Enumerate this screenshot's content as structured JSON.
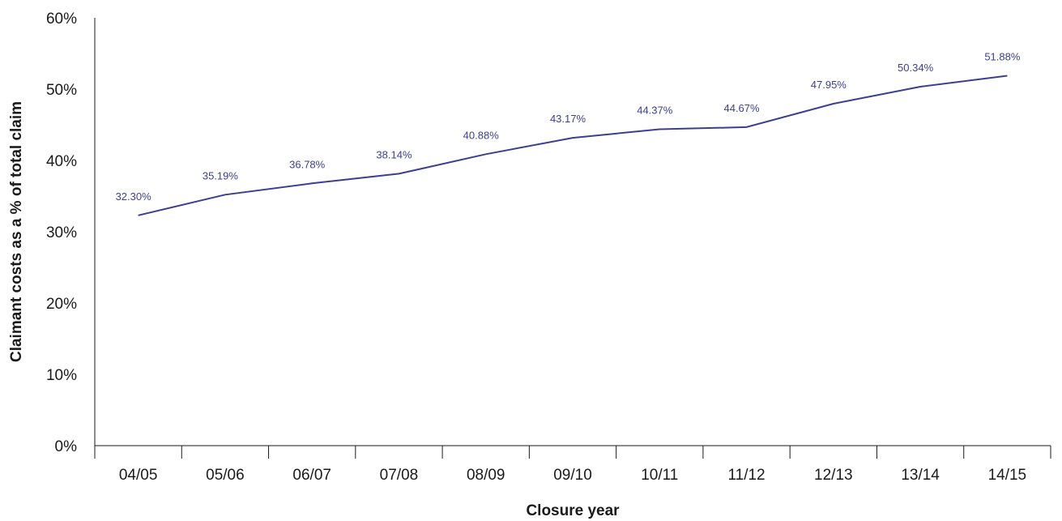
{
  "chart_data": {
    "type": "line",
    "title": "",
    "xlabel": "Closure year",
    "ylabel": "Claimant costs as a % of total claim",
    "categories": [
      "04/05",
      "05/06",
      "06/07",
      "07/08",
      "08/09",
      "09/10",
      "10/11",
      "11/12",
      "12/13",
      "13/14",
      "14/15"
    ],
    "series": [
      {
        "values": [
          32.3,
          35.19,
          36.78,
          38.14,
          40.88,
          43.17,
          44.37,
          44.67,
          47.95,
          50.34,
          51.88
        ],
        "labels": [
          "32.30%",
          "35.19%",
          "36.78%",
          "38.14%",
          "40.88%",
          "43.17%",
          "44.37%",
          "44.67%",
          "47.95%",
          "50.34%",
          "51.88%"
        ],
        "color": "#3c3f8f"
      }
    ],
    "yticks": [
      "0%",
      "10%",
      "20%",
      "30%",
      "40%",
      "50%",
      "60%"
    ],
    "ylim": [
      0,
      60
    ],
    "grid": false,
    "legend": "none"
  }
}
